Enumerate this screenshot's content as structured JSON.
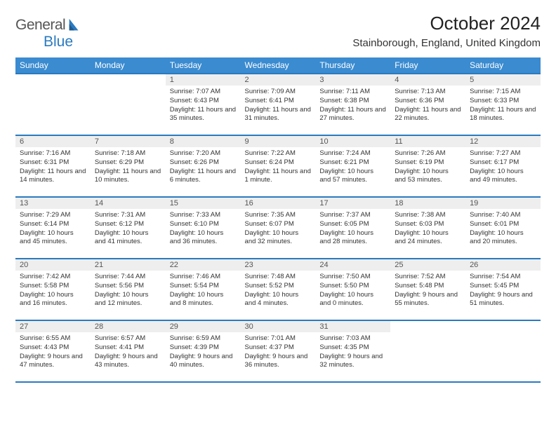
{
  "logo": {
    "text1": "General",
    "text2": "Blue"
  },
  "title": "October 2024",
  "location": "Stainborough, England, United Kingdom",
  "header_bg": "#3a8bd0",
  "border_color": "#2a7ac0",
  "daynum_bg": "#eeeeee",
  "weekdays": [
    "Sunday",
    "Monday",
    "Tuesday",
    "Wednesday",
    "Thursday",
    "Friday",
    "Saturday"
  ],
  "weeks": [
    [
      null,
      null,
      {
        "n": "1",
        "sr": "7:07 AM",
        "ss": "6:43 PM",
        "dl": "11 hours and 35 minutes."
      },
      {
        "n": "2",
        "sr": "7:09 AM",
        "ss": "6:41 PM",
        "dl": "11 hours and 31 minutes."
      },
      {
        "n": "3",
        "sr": "7:11 AM",
        "ss": "6:38 PM",
        "dl": "11 hours and 27 minutes."
      },
      {
        "n": "4",
        "sr": "7:13 AM",
        "ss": "6:36 PM",
        "dl": "11 hours and 22 minutes."
      },
      {
        "n": "5",
        "sr": "7:15 AM",
        "ss": "6:33 PM",
        "dl": "11 hours and 18 minutes."
      }
    ],
    [
      {
        "n": "6",
        "sr": "7:16 AM",
        "ss": "6:31 PM",
        "dl": "11 hours and 14 minutes."
      },
      {
        "n": "7",
        "sr": "7:18 AM",
        "ss": "6:29 PM",
        "dl": "11 hours and 10 minutes."
      },
      {
        "n": "8",
        "sr": "7:20 AM",
        "ss": "6:26 PM",
        "dl": "11 hours and 6 minutes."
      },
      {
        "n": "9",
        "sr": "7:22 AM",
        "ss": "6:24 PM",
        "dl": "11 hours and 1 minute."
      },
      {
        "n": "10",
        "sr": "7:24 AM",
        "ss": "6:21 PM",
        "dl": "10 hours and 57 minutes."
      },
      {
        "n": "11",
        "sr": "7:26 AM",
        "ss": "6:19 PM",
        "dl": "10 hours and 53 minutes."
      },
      {
        "n": "12",
        "sr": "7:27 AM",
        "ss": "6:17 PM",
        "dl": "10 hours and 49 minutes."
      }
    ],
    [
      {
        "n": "13",
        "sr": "7:29 AM",
        "ss": "6:14 PM",
        "dl": "10 hours and 45 minutes."
      },
      {
        "n": "14",
        "sr": "7:31 AM",
        "ss": "6:12 PM",
        "dl": "10 hours and 41 minutes."
      },
      {
        "n": "15",
        "sr": "7:33 AM",
        "ss": "6:10 PM",
        "dl": "10 hours and 36 minutes."
      },
      {
        "n": "16",
        "sr": "7:35 AM",
        "ss": "6:07 PM",
        "dl": "10 hours and 32 minutes."
      },
      {
        "n": "17",
        "sr": "7:37 AM",
        "ss": "6:05 PM",
        "dl": "10 hours and 28 minutes."
      },
      {
        "n": "18",
        "sr": "7:38 AM",
        "ss": "6:03 PM",
        "dl": "10 hours and 24 minutes."
      },
      {
        "n": "19",
        "sr": "7:40 AM",
        "ss": "6:01 PM",
        "dl": "10 hours and 20 minutes."
      }
    ],
    [
      {
        "n": "20",
        "sr": "7:42 AM",
        "ss": "5:58 PM",
        "dl": "10 hours and 16 minutes."
      },
      {
        "n": "21",
        "sr": "7:44 AM",
        "ss": "5:56 PM",
        "dl": "10 hours and 12 minutes."
      },
      {
        "n": "22",
        "sr": "7:46 AM",
        "ss": "5:54 PM",
        "dl": "10 hours and 8 minutes."
      },
      {
        "n": "23",
        "sr": "7:48 AM",
        "ss": "5:52 PM",
        "dl": "10 hours and 4 minutes."
      },
      {
        "n": "24",
        "sr": "7:50 AM",
        "ss": "5:50 PM",
        "dl": "10 hours and 0 minutes."
      },
      {
        "n": "25",
        "sr": "7:52 AM",
        "ss": "5:48 PM",
        "dl": "9 hours and 55 minutes."
      },
      {
        "n": "26",
        "sr": "7:54 AM",
        "ss": "5:45 PM",
        "dl": "9 hours and 51 minutes."
      }
    ],
    [
      {
        "n": "27",
        "sr": "6:55 AM",
        "ss": "4:43 PM",
        "dl": "9 hours and 47 minutes."
      },
      {
        "n": "28",
        "sr": "6:57 AM",
        "ss": "4:41 PM",
        "dl": "9 hours and 43 minutes."
      },
      {
        "n": "29",
        "sr": "6:59 AM",
        "ss": "4:39 PM",
        "dl": "9 hours and 40 minutes."
      },
      {
        "n": "30",
        "sr": "7:01 AM",
        "ss": "4:37 PM",
        "dl": "9 hours and 36 minutes."
      },
      {
        "n": "31",
        "sr": "7:03 AM",
        "ss": "4:35 PM",
        "dl": "9 hours and 32 minutes."
      },
      null,
      null
    ]
  ],
  "labels": {
    "sunrise": "Sunrise:",
    "sunset": "Sunset:",
    "daylight": "Daylight:"
  }
}
